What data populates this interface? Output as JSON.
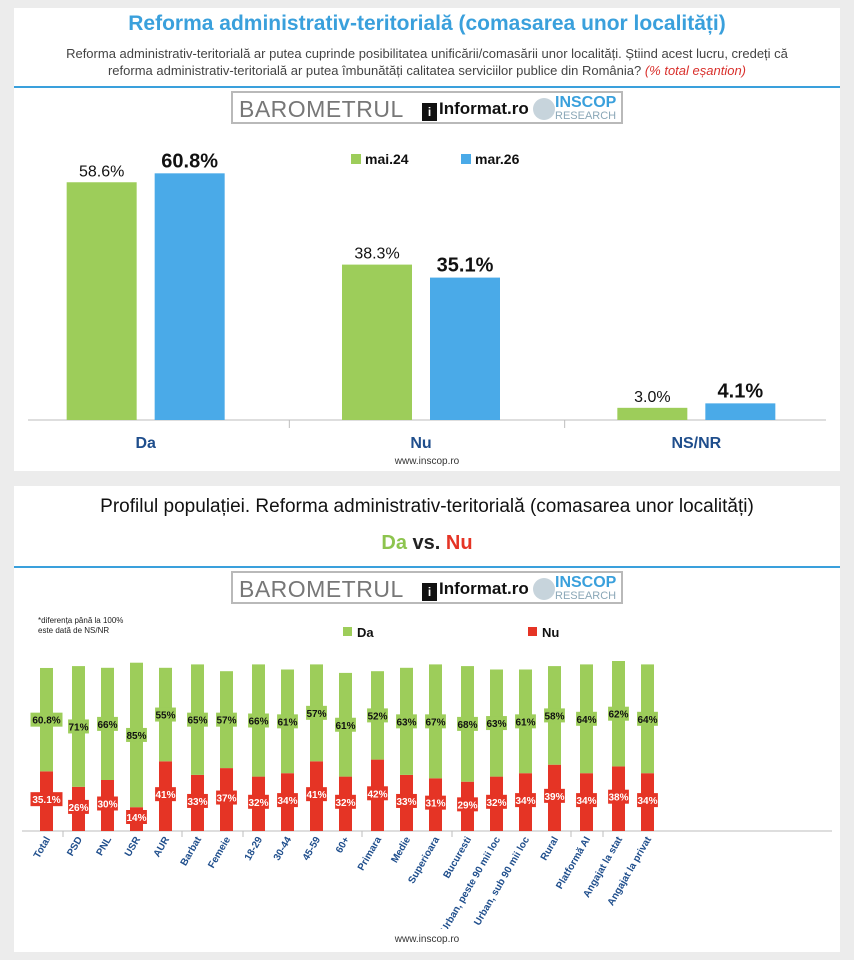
{
  "panel1": {
    "title": "Reforma administrativ-teritorială (comasarea unor localități)",
    "subtitle": "Reforma administrativ-teritorială ar putea cuprinde posibilitatea unificării/comasării unor localități. Știind acest lucru, credeți că reforma administrativ-teritorială ar putea îmbunătăți calitatea serviciilor publice din România?",
    "subtitle_note": "(% total eșantion)",
    "footer": "www.inscop.ro"
  },
  "panel2": {
    "title": "Profilul populației. Reforma administrativ-teritorială (comasarea unor localități)",
    "da_label": "Da",
    "vs_label": "vs.",
    "nu_label": "Nu",
    "note_line1": "*diferența până la 100%",
    "note_line2": "este dată de NS/NR",
    "footer": "www.inscop.ro"
  },
  "logo": {
    "barometrul": "BAROMETRUL",
    "informat_prefix": "i",
    "informat_text": "Informat.ro",
    "inscop": "INSCOP",
    "research": "RESEARCH"
  },
  "colors": {
    "green": "#9dcd5a",
    "blue": "#4aaae8",
    "red": "#e53425",
    "title_blue": "#3aa0dc",
    "category_blue": "#1f4e8c"
  },
  "chart_data": [
    {
      "type": "bar",
      "title": "Reforma administrativ-teritorială (comasarea unor localități)",
      "categories": [
        "Da",
        "Nu",
        "NS/NR"
      ],
      "series": [
        {
          "name": "mai.24",
          "values": [
            58.6,
            38.3,
            3.0
          ],
          "labels": [
            "58.6%",
            "38.3%",
            "3.0%"
          ]
        },
        {
          "name": "mar.26",
          "values": [
            60.8,
            35.1,
            4.1
          ],
          "labels": [
            "60.8%",
            "35.1%",
            "4.1%"
          ]
        }
      ],
      "ylim": [
        0,
        70
      ],
      "legend": "top-center"
    },
    {
      "type": "bar",
      "stacked": true,
      "title": "Profilul populației. Reforma administrativ-teritorială (comasarea unor localități)",
      "categories": [
        "Total",
        "PSD",
        "PNL",
        "USR",
        "AUR",
        "Barbat",
        "Femeie",
        "18-29",
        "30-44",
        "45-59",
        "60+",
        "Primara",
        "Medie",
        "Superioara",
        "Bucuresti",
        "Urban, peste 90 mii loc",
        "Urban, sub 90 mii loc",
        "Rural",
        "Platformă AI",
        "Angajat la stat",
        "Angajat la privat"
      ],
      "groups": [
        [
          0
        ],
        [
          1,
          2,
          3,
          4
        ],
        [
          5,
          6
        ],
        [
          7,
          8,
          9,
          10
        ],
        [
          11,
          12,
          13
        ],
        [
          14,
          15,
          16,
          17
        ],
        [
          18
        ],
        [
          19,
          20
        ]
      ],
      "series": [
        {
          "name": "Nu",
          "values": [
            35.1,
            26,
            30,
            14,
            41,
            33,
            37,
            32,
            34,
            41,
            32,
            42,
            33,
            31,
            29,
            32,
            34,
            39,
            34,
            38,
            34
          ],
          "labels": [
            "35.1%",
            "26%",
            "30%",
            "14%",
            "41%",
            "33%",
            "37%",
            "32%",
            "34%",
            "41%",
            "32%",
            "42%",
            "33%",
            "31%",
            "29%",
            "32%",
            "34%",
            "39%",
            "34%",
            "38%",
            "34%"
          ]
        },
        {
          "name": "Da",
          "values": [
            60.8,
            71,
            66,
            85,
            55,
            65,
            57,
            66,
            61,
            57,
            61,
            52,
            63,
            67,
            68,
            63,
            61,
            58,
            64,
            62,
            64
          ],
          "labels": [
            "60.8%",
            "71%",
            "66%",
            "85%",
            "55%",
            "65%",
            "57%",
            "66%",
            "61%",
            "57%",
            "61%",
            "52%",
            "63%",
            "67%",
            "68%",
            "63%",
            "61%",
            "58%",
            "64%",
            "62%",
            "64%"
          ]
        }
      ],
      "ylim": [
        0,
        100
      ],
      "legend": "top-center"
    }
  ]
}
